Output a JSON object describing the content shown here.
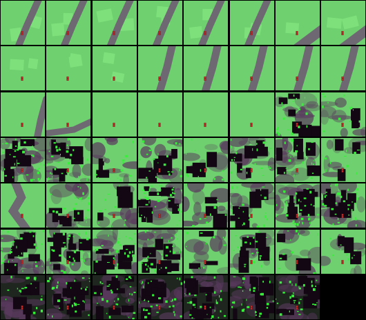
{
  "grid": {
    "columns": 8,
    "rows": 7,
    "background": "#000000"
  },
  "palette": {
    "grass": "#6ed06e",
    "grass_light": "#7ee07a",
    "road": "#6e6872",
    "dark": "#120712",
    "purple": "#5a3a5e",
    "bright_green": "#37f03a",
    "agent_red": "#e0262a",
    "agent_dark": "#6a1a14"
  },
  "frames": [
    {
      "road": "diag-top",
      "patches": 2,
      "agent": true
    },
    {
      "road": "diag-top",
      "patches": 2,
      "agent": true
    },
    {
      "road": "diag-top",
      "patches": 2,
      "agent": true
    },
    {
      "road": "diag-top",
      "patches": 2,
      "agent": true
    },
    {
      "road": "diag-top",
      "patches": 2,
      "agent": true
    },
    {
      "road": "diag-top",
      "patches": 2,
      "agent": true
    },
    {
      "road": "corner",
      "patches": 1,
      "agent": true
    },
    {
      "road": "corner",
      "patches": 2,
      "agent": true
    },
    {
      "road": "none",
      "patches": 2,
      "agent": true
    },
    {
      "road": "none",
      "patches": 2,
      "agent": true
    },
    {
      "road": "none",
      "patches": 2,
      "agent": true
    },
    {
      "road": "diag-mid",
      "patches": 0,
      "agent": true
    },
    {
      "road": "diag-mid",
      "patches": 0,
      "agent": true
    },
    {
      "road": "diag-mid",
      "patches": 0,
      "agent": true
    },
    {
      "road": "diag-mid",
      "patches": 0,
      "agent": true
    },
    {
      "road": "diag-mid",
      "patches": 0,
      "agent": true
    },
    {
      "road": "curve-low",
      "patches": 0,
      "agent": true
    },
    {
      "road": "curve-bottom",
      "patches": 0,
      "agent": true
    },
    {
      "road": "none",
      "patches": 0,
      "agent": true
    },
    {
      "road": "none",
      "patches": 0,
      "agent": true
    },
    {
      "road": "none",
      "patches": 0,
      "agent": true
    },
    {
      "road": "none",
      "patches": 0,
      "agent": true
    },
    {
      "road": "noise",
      "patches": 0,
      "agent": true,
      "noise": 2
    },
    {
      "road": "noise",
      "patches": 0,
      "agent": true,
      "noise": 1
    },
    {
      "road": "noise",
      "patches": 0,
      "agent": true,
      "noise": 3
    },
    {
      "road": "noise",
      "patches": 0,
      "agent": true,
      "noise": 3
    },
    {
      "road": "noise",
      "patches": 0,
      "agent": true,
      "noise": 1
    },
    {
      "road": "noise",
      "patches": 0,
      "agent": true,
      "noise": 2
    },
    {
      "road": "noise",
      "patches": 0,
      "agent": true,
      "noise": 1
    },
    {
      "road": "noise",
      "patches": 0,
      "agent": true,
      "noise": 2
    },
    {
      "road": "noise",
      "patches": 0,
      "agent": true,
      "noise": 2
    },
    {
      "road": "noise",
      "patches": 0,
      "agent": true,
      "noise": 1
    },
    {
      "road": "blob",
      "patches": 0,
      "agent": true,
      "noise": 0
    },
    {
      "road": "noise",
      "patches": 0,
      "agent": true,
      "noise": 2
    },
    {
      "road": "noise",
      "patches": 0,
      "agent": true,
      "noise": 1
    },
    {
      "road": "noise",
      "patches": 0,
      "agent": true,
      "noise": 3
    },
    {
      "road": "noise",
      "patches": 0,
      "agent": true,
      "noise": 1
    },
    {
      "road": "noise",
      "patches": 0,
      "agent": true,
      "noise": 2
    },
    {
      "road": "noise",
      "patches": 0,
      "agent": true,
      "noise": 3
    },
    {
      "road": "noise",
      "patches": 0,
      "agent": true,
      "noise": 3
    },
    {
      "road": "noise",
      "patches": 0,
      "agent": true,
      "noise": 3
    },
    {
      "road": "noise",
      "patches": 0,
      "agent": true,
      "noise": 3
    },
    {
      "road": "noise",
      "patches": 0,
      "agent": true,
      "noise": 3
    },
    {
      "road": "noise",
      "patches": 0,
      "agent": true,
      "noise": 3
    },
    {
      "road": "noise",
      "patches": 0,
      "agent": true,
      "noise": 1
    },
    {
      "road": "noise",
      "patches": 0,
      "agent": true,
      "noise": 2
    },
    {
      "road": "noise",
      "patches": 0,
      "agent": true,
      "noise": 1
    },
    {
      "road": "noise",
      "patches": 0,
      "agent": true,
      "noise": 1
    },
    {
      "road": "dark",
      "patches": 0,
      "agent": true,
      "noise": 2
    },
    {
      "road": "dark",
      "patches": 0,
      "agent": true,
      "noise": 3
    },
    {
      "road": "dark",
      "patches": 0,
      "agent": true,
      "noise": 3
    },
    {
      "road": "dark",
      "patches": 0,
      "agent": true,
      "noise": 3
    },
    {
      "road": "dark",
      "patches": 0,
      "agent": true,
      "noise": 3
    },
    {
      "road": "dark",
      "patches": 0,
      "agent": true,
      "noise": 3
    },
    {
      "road": "dark",
      "patches": 0,
      "agent": true,
      "noise": 3
    }
  ]
}
